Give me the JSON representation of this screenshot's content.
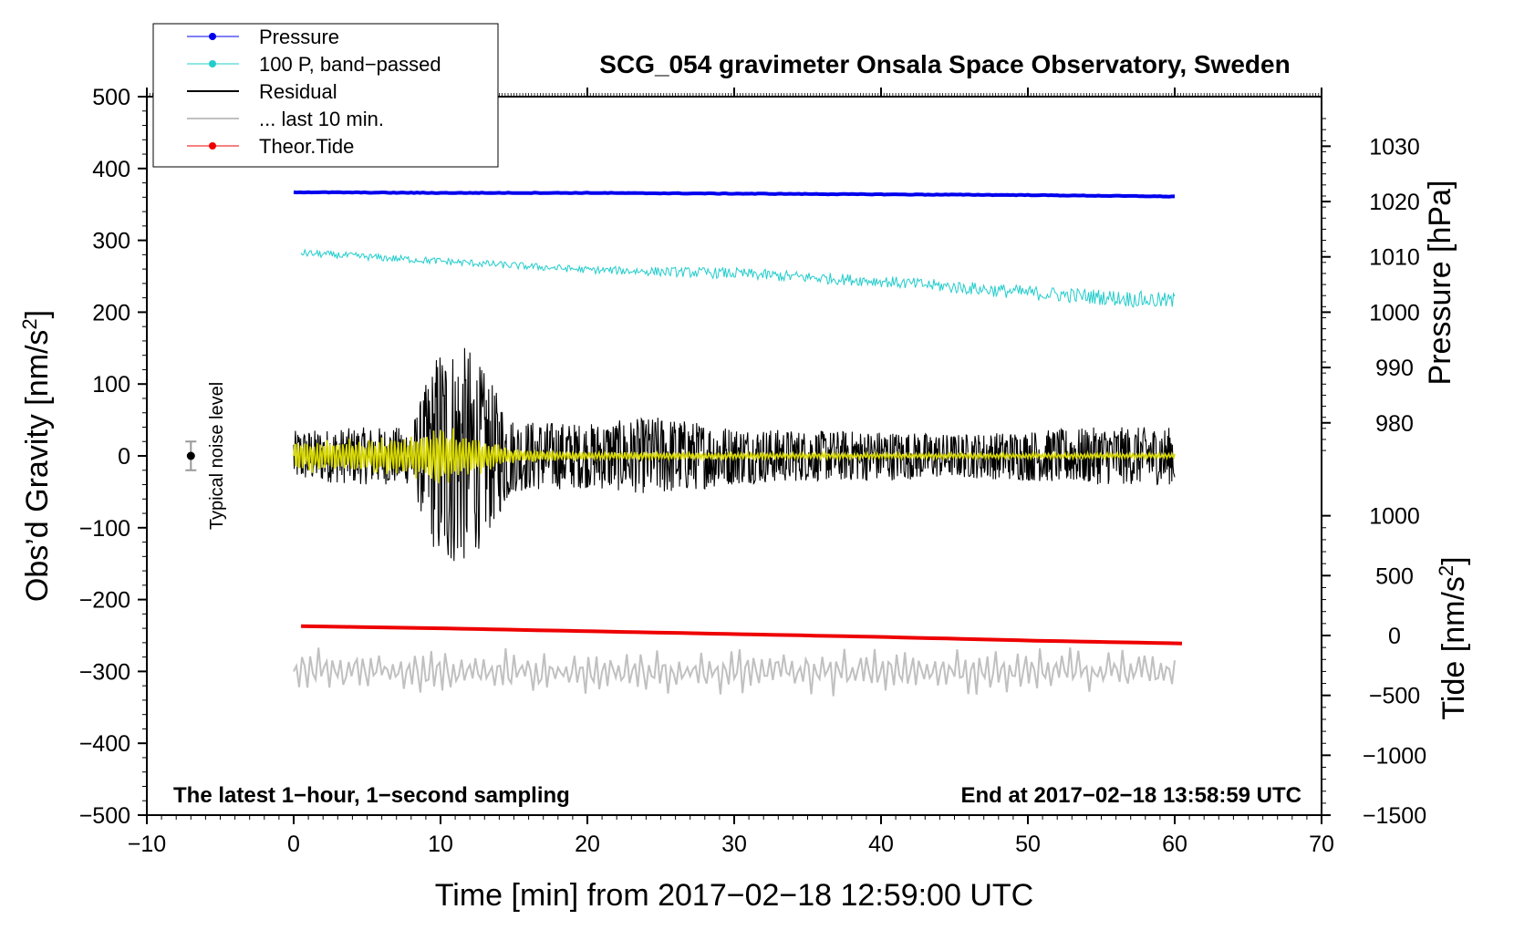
{
  "chart_data": {
    "type": "line",
    "title": "SCG_054 gravimeter Onsala Space Observatory, Sweden",
    "xlabel": "Time [min] from 2017−02−18 12:59:00 UTC",
    "ylabel": "Obs’d Gravity [nm/s",
    "ylabel_sup": "2",
    "ylabel_close": "]",
    "xlim": [
      -10,
      70
    ],
    "ylim": [
      -500,
      500
    ],
    "xticks": [
      -10,
      0,
      10,
      20,
      30,
      40,
      50,
      60,
      70
    ],
    "xtick_labels": [
      "−10",
      "0",
      "10",
      "20",
      "30",
      "40",
      "50",
      "60",
      "70"
    ],
    "yticks": [
      -500,
      -400,
      -300,
      -200,
      -100,
      0,
      100,
      200,
      300,
      400,
      500
    ],
    "ytick_labels": [
      "−500",
      "−400",
      "−300",
      "−200",
      "−100",
      "0",
      "100",
      "200",
      "300",
      "400",
      "500"
    ],
    "pressure_axis": {
      "label": "Pressure [hPa]",
      "ticks": [
        980,
        990,
        1000,
        1010,
        1020,
        1030
      ],
      "tick_labels": [
        "980",
        "990",
        "1000",
        "1010",
        "1020",
        "1030"
      ],
      "gravity_at_1000": 200,
      "gravity_per_hpa": 7.7
    },
    "tide_axis": {
      "label": "Tide [nm/s",
      "label_sup": "2",
      "label_close": "]",
      "ticks": [
        -1500,
        -1000,
        -500,
        0,
        500,
        1000
      ],
      "tick_labels": [
        "−1500",
        "−1000",
        "−500",
        "0",
        "500",
        "1000"
      ],
      "gravity_at_0": -250,
      "gravity_per_unit": 0.1667
    },
    "legend": [
      {
        "label": "Pressure",
        "color": "#0000ee",
        "style": "line-dot"
      },
      {
        "label": "100 P, band−passed",
        "color": "#22cccc",
        "style": "line-dot"
      },
      {
        "label": "Residual",
        "color": "#000000",
        "style": "line"
      },
      {
        "label": "... last 10 min.",
        "color": "#c0c0c0",
        "style": "line"
      },
      {
        "label": "Theor.Tide",
        "color": "#ee0000",
        "style": "line-dot"
      }
    ],
    "series": [
      {
        "name": "Pressure",
        "color": "#0000ee",
        "x": [
          0,
          10,
          20,
          30,
          40,
          50,
          60
        ],
        "y": [
          367,
          366,
          366,
          365,
          364,
          363,
          361
        ]
      },
      {
        "name": "100 P, band-passed",
        "color": "#22cccc",
        "x": [
          0,
          10,
          20,
          30,
          40,
          50,
          60
        ],
        "y": [
          283,
          271,
          259,
          254,
          243,
          227,
          215
        ],
        "noise_amplitude": [
          5,
          5,
          5,
          8,
          8,
          10,
          12
        ]
      },
      {
        "name": "Residual",
        "color": "#000000",
        "x": [
          0,
          5,
          8,
          10,
          12,
          15,
          20,
          25,
          30,
          35,
          40,
          45,
          50,
          55,
          60
        ],
        "envelope": [
          35,
          40,
          40,
          160,
          150,
          50,
          45,
          55,
          40,
          35,
          35,
          30,
          35,
          40,
          40
        ],
        "y_center": 0
      },
      {
        "name": "Residual (smoothed)",
        "color": "#d8d800",
        "x": [
          0,
          5,
          8,
          10,
          12,
          15,
          20,
          30,
          40,
          50,
          60
        ],
        "envelope": [
          25,
          25,
          30,
          50,
          30,
          10,
          6,
          5,
          4,
          4,
          4
        ],
        "y_center": 0
      },
      {
        "name": "Theor.Tide",
        "color": "#ee0000",
        "x": [
          0.5,
          10,
          20,
          30,
          40,
          50,
          60.5
        ],
        "y": [
          -237,
          -240,
          -244,
          -248,
          -252,
          -257,
          -261
        ]
      },
      {
        "name": "... last 10 min.",
        "color": "#c0c0c0",
        "x": [
          0,
          60
        ],
        "y_center": -300,
        "envelope": [
          35,
          35
        ]
      }
    ],
    "noise_level": {
      "label": "Typical noise level",
      "x": -7,
      "y": 0,
      "error": 20
    },
    "annotations": {
      "left": "The latest 1−hour, 1−second sampling",
      "right": "End at 2017−02−18 13:58:59 UTC"
    }
  }
}
